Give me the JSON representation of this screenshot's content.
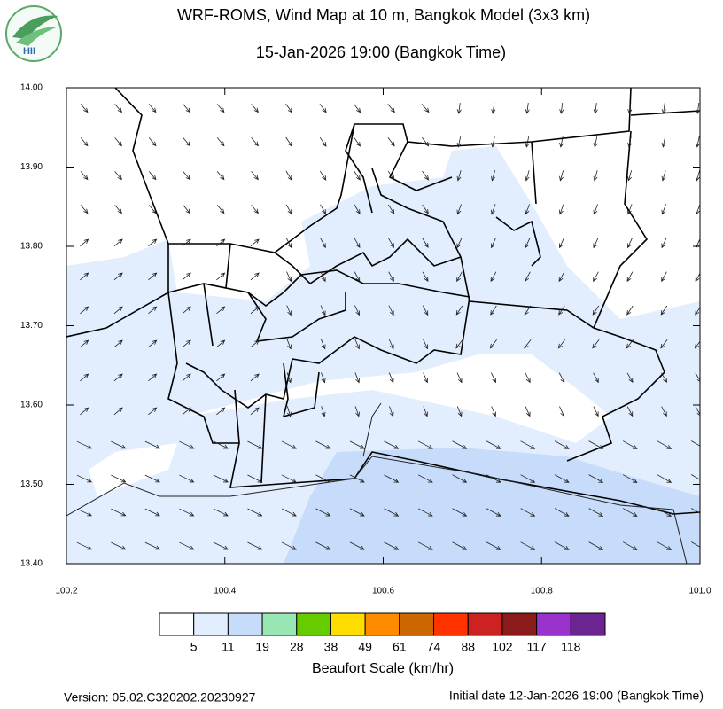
{
  "logo": {
    "text": "HII"
  },
  "title": "WRF-ROMS, Wind Map at 10 m, Bangkok Model (3x3 km)",
  "subtitle": "15-Jan-2026 19:00 (Bangkok Time)",
  "map": {
    "xlim": [
      100.2,
      101.0
    ],
    "ylim": [
      13.4,
      14.0
    ],
    "xticks": [
      100.2,
      100.4,
      100.6,
      100.8,
      {
        "value": 101.0,
        "label": "101.0"
      }
    ],
    "yticks": [
      {
        "value": 14.0,
        "label": "14.00"
      },
      {
        "value": 13.9,
        "label": "13.90"
      },
      {
        "value": 13.8,
        "label": "13.80"
      },
      {
        "value": 13.7,
        "label": "13.70"
      },
      {
        "value": 13.6,
        "label": "13.60"
      },
      {
        "value": 13.5,
        "label": "13.50"
      },
      {
        "value": 13.4,
        "label": "13.40"
      }
    ]
  },
  "legend": {
    "title": "Beaufort Scale (km/hr)",
    "bounds": [
      5,
      11,
      19,
      28,
      38,
      49,
      61,
      74,
      88,
      102,
      117,
      118
    ],
    "colors": [
      "#ffffff",
      "#e2eefd",
      "#c6dcfa",
      "#98e6b4",
      "#66cc00",
      "#ffdd00",
      "#ff8c00",
      "#cc6600",
      "#ff3300",
      "#cc2222",
      "#8b1a1a",
      "#9933cc",
      "#6a2590"
    ]
  },
  "footer": {
    "version": "Version: 05.02.C320202.20230927",
    "initial": "Initial date 12-Jan-2026 19:00 (Bangkok Time)"
  }
}
